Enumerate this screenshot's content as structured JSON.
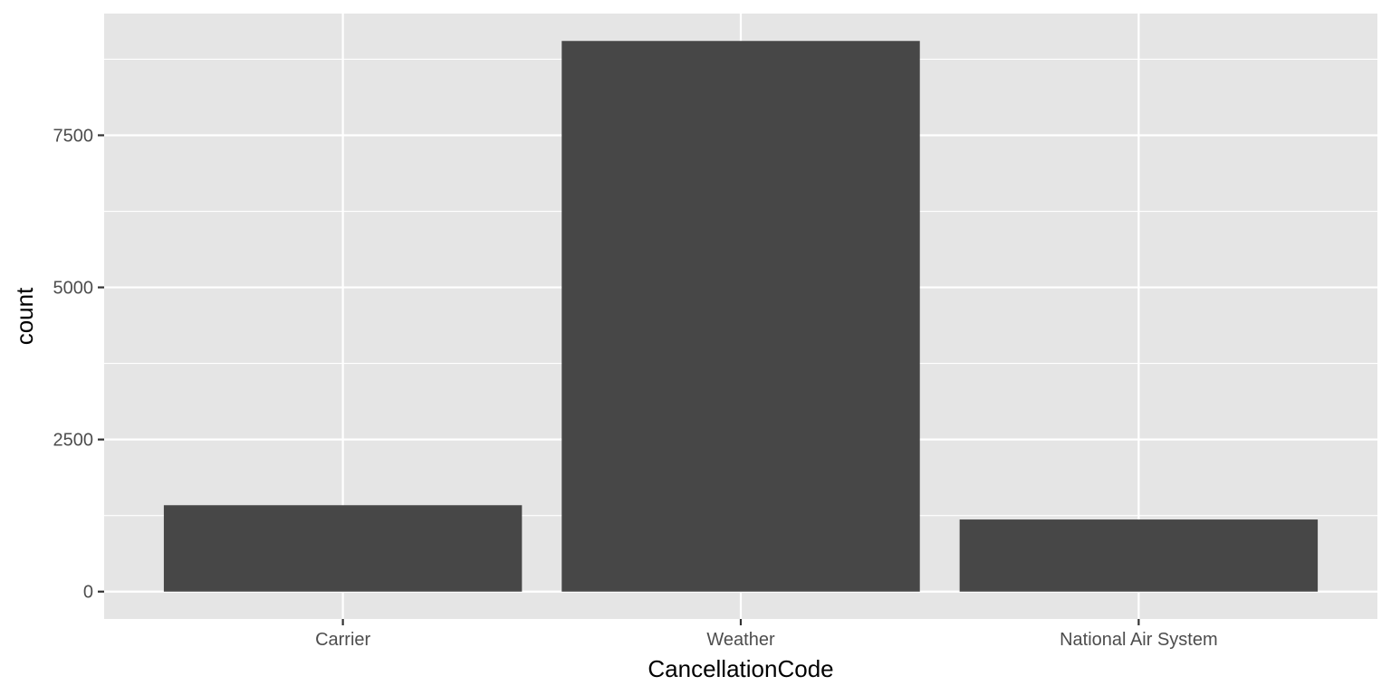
{
  "chart_data": {
    "type": "bar",
    "categories": [
      "Carrier",
      "Weather",
      "National Air System"
    ],
    "values": [
      1420,
      9050,
      1185
    ],
    "xlabel": "CancellationCode",
    "ylabel": "count",
    "ylim": [
      -450,
      9500
    ],
    "yticks": [
      0,
      2500,
      5000,
      7500
    ],
    "ytick_labels": [
      "0",
      "2500",
      "5000",
      "7500"
    ],
    "grid": true,
    "bar_color": "#474747",
    "panel_color": "#e5e5e5",
    "grid_color": "#ffffff"
  }
}
